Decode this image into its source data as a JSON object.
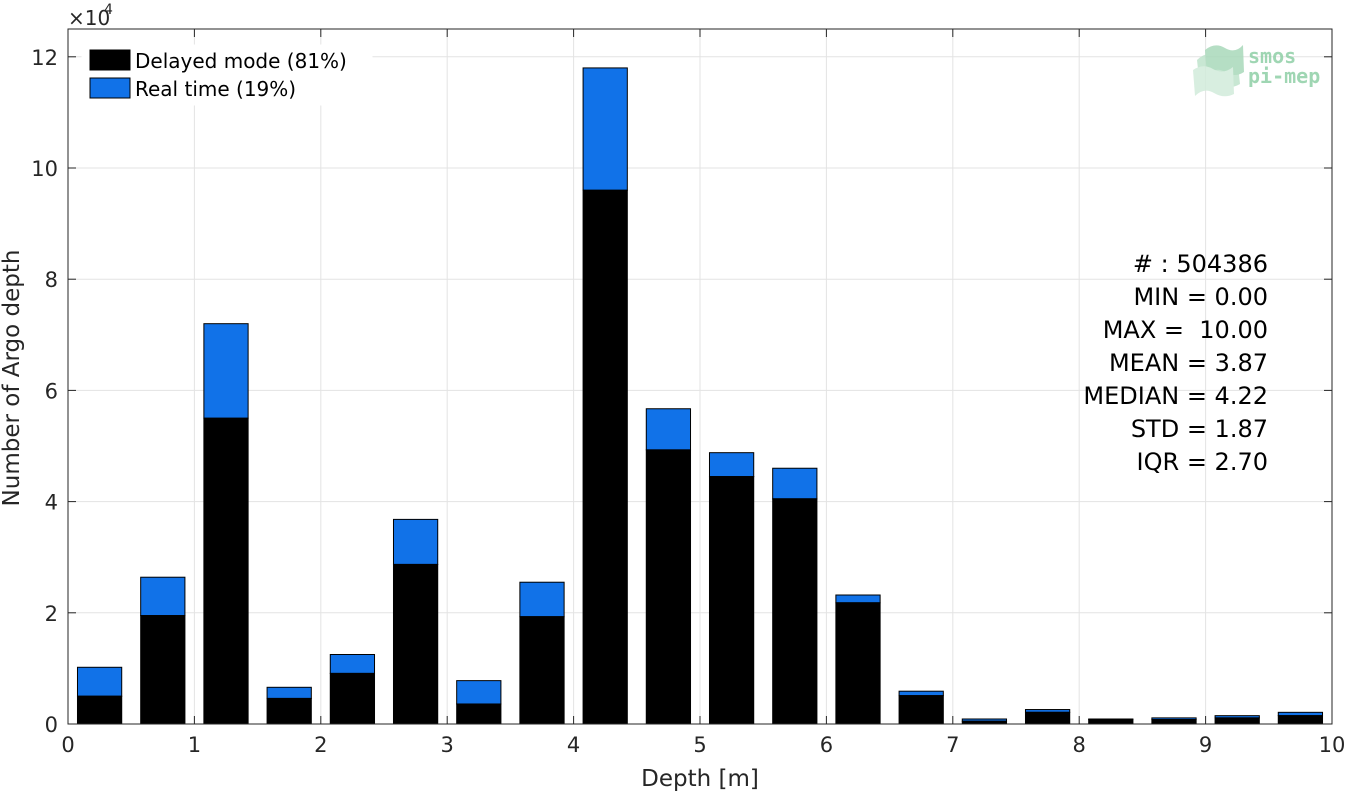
{
  "chart_data": {
    "type": "bar",
    "stacked": true,
    "xlabel": "Depth [m]",
    "ylabel": "Number of Argo depth",
    "xlim": [
      0,
      10
    ],
    "ylim": [
      0,
      125000
    ],
    "y_multiplier_base": "×10",
    "y_multiplier_exp": "4",
    "xticks": [
      "0",
      "1",
      "2",
      "3",
      "4",
      "5",
      "6",
      "7",
      "8",
      "9",
      "10"
    ],
    "yticks": [
      "0",
      "2",
      "4",
      "6",
      "8",
      "10",
      "12"
    ],
    "grid": true,
    "legend_position": "top-left",
    "bin_centers": [
      0.25,
      0.75,
      1.25,
      1.75,
      2.25,
      2.75,
      3.25,
      3.75,
      4.25,
      4.75,
      5.25,
      5.75,
      6.25,
      6.75,
      7.25,
      7.75,
      8.25,
      8.75,
      9.25,
      9.75
    ],
    "bin_width": 0.5,
    "series": [
      {
        "name": "Delayed mode (81%)",
        "color": "#000000",
        "values": [
          5000,
          19500,
          55000,
          4600,
          9100,
          28700,
          3600,
          19300,
          96000,
          49300,
          44500,
          40500,
          21800,
          5100,
          500,
          2100,
          800,
          800,
          1100,
          1500
        ]
      },
      {
        "name": "Real time (19%)",
        "color": "#1172e8",
        "values": [
          5200,
          6900,
          17000,
          2000,
          3400,
          8100,
          4200,
          6200,
          22000,
          7400,
          4300,
          5500,
          1400,
          800,
          400,
          500,
          100,
          300,
          400,
          600
        ]
      }
    ]
  },
  "stats": {
    "count": "# : 504386",
    "min": "MIN = 0.00",
    "max": "MAX =  10.00",
    "mean": "MEAN = 3.87",
    "median": "MEDIAN = 4.22",
    "std": "STD = 1.87",
    "iqr": "IQR = 2.70"
  },
  "logo": {
    "line1": "smos",
    "line2": "pi-mep",
    "color": "#8fcfa6"
  }
}
